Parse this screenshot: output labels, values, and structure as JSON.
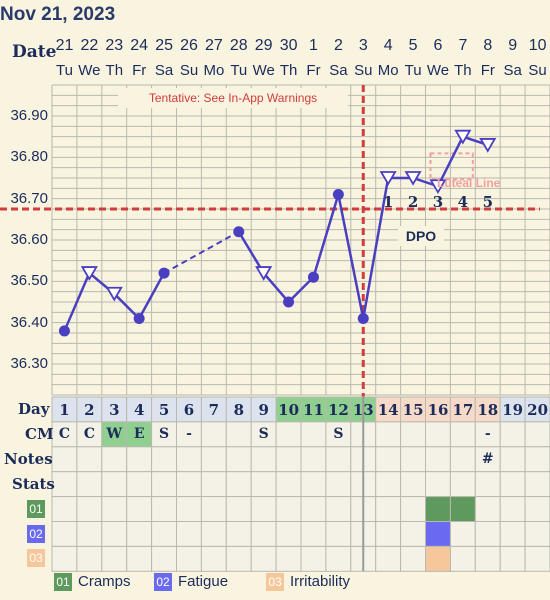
{
  "header": {
    "title": "Nov 21, 2023"
  },
  "row_labels": {
    "date": "Date",
    "day": "Day",
    "cm": "CM",
    "notes": "Notes",
    "stats": "Stats"
  },
  "warning": "Tentative: See In-App Warnings",
  "coverline_label": "Luteal Line",
  "dpo_label": "DPO",
  "dates": [
    "21",
    "22",
    "23",
    "24",
    "25",
    "26",
    "27",
    "28",
    "29",
    "30",
    "1",
    "2",
    "3",
    "4",
    "5",
    "6",
    "7",
    "8",
    "9",
    "10"
  ],
  "weekdays": [
    "Tu",
    "We",
    "Th",
    "Fr",
    "Sa",
    "Su",
    "Mo",
    "Tu",
    "We",
    "Th",
    "Fr",
    "Sa",
    "Su",
    "Mo",
    "Tu",
    "We",
    "Th",
    "Fr",
    "Sa",
    "Su"
  ],
  "cycle_days": [
    "1",
    "2",
    "3",
    "4",
    "5",
    "6",
    "7",
    "8",
    "9",
    "10",
    "11",
    "12",
    "13",
    "14",
    "15",
    "16",
    "17",
    "18",
    "19",
    "20"
  ],
  "cm": [
    "C",
    "C",
    "W",
    "E",
    "S",
    "-",
    "",
    "",
    "S",
    "",
    "",
    "S",
    "",
    "",
    "",
    "",
    "",
    "-",
    "",
    ""
  ],
  "notes": [
    "",
    "",
    "",
    "",
    "",
    "",
    "",
    "",
    "",
    "",
    "",
    "",
    "",
    "",
    "",
    "",
    "",
    "#",
    "",
    ""
  ],
  "dpo_numbers": [
    "1",
    "2",
    "3",
    "4",
    "5"
  ],
  "y_ticks": [
    "36.90",
    "36.80",
    "36.70",
    "36.60",
    "36.50",
    "36.40",
    "36.30"
  ],
  "symptoms": [
    {
      "code": "01",
      "name": "Cramps",
      "color": "#5e9a5e",
      "days": [
        "16",
        "17"
      ]
    },
    {
      "code": "02",
      "name": "Fatigue",
      "color": "#6a6af0",
      "days": [
        "16"
      ]
    },
    {
      "code": "03",
      "name": "Irritability",
      "color": "#f6c79a",
      "days": [
        "16"
      ]
    }
  ],
  "colors": {
    "line": "#4a3fc0",
    "coverline": "#d23c3c",
    "fertile_day_bg": "#8fcf8f",
    "luteal_day_bg": "#f6d9c6",
    "default_day_bg": "#dde3ee",
    "cm_highlight": "#8fcf8f"
  },
  "chart_data": {
    "type": "line",
    "x": [
      "Nov 21",
      "Nov 22",
      "Nov 23",
      "Nov 24",
      "Nov 25",
      "Nov 26",
      "Nov 27",
      "Nov 28",
      "Nov 29",
      "Nov 30",
      "Dec 1",
      "Dec 2",
      "Dec 3",
      "Dec 4",
      "Dec 5",
      "Dec 6",
      "Dec 7",
      "Dec 8"
    ],
    "series": [
      {
        "values": [
          36.38,
          36.52,
          36.47,
          36.41,
          36.52,
          null,
          null,
          36.62,
          36.52,
          36.45,
          36.51,
          36.71,
          36.41,
          36.75,
          36.75,
          36.73,
          36.85,
          36.83
        ]
      }
    ],
    "markers": [
      "circle",
      "triangle-down",
      "triangle-down",
      "circle",
      "circle",
      null,
      null,
      "circle",
      "triangle-down",
      "circle",
      "circle",
      "circle",
      "circle",
      "triangle-down",
      "triangle-down",
      "triangle-down",
      "triangle-down",
      "triangle-down"
    ],
    "gap_segment": [
      "Nov 25",
      "Nov 28"
    ],
    "coverline": 36.675,
    "ovulation_day": "Dec 3",
    "ylim": [
      36.225,
      36.975
    ]
  }
}
